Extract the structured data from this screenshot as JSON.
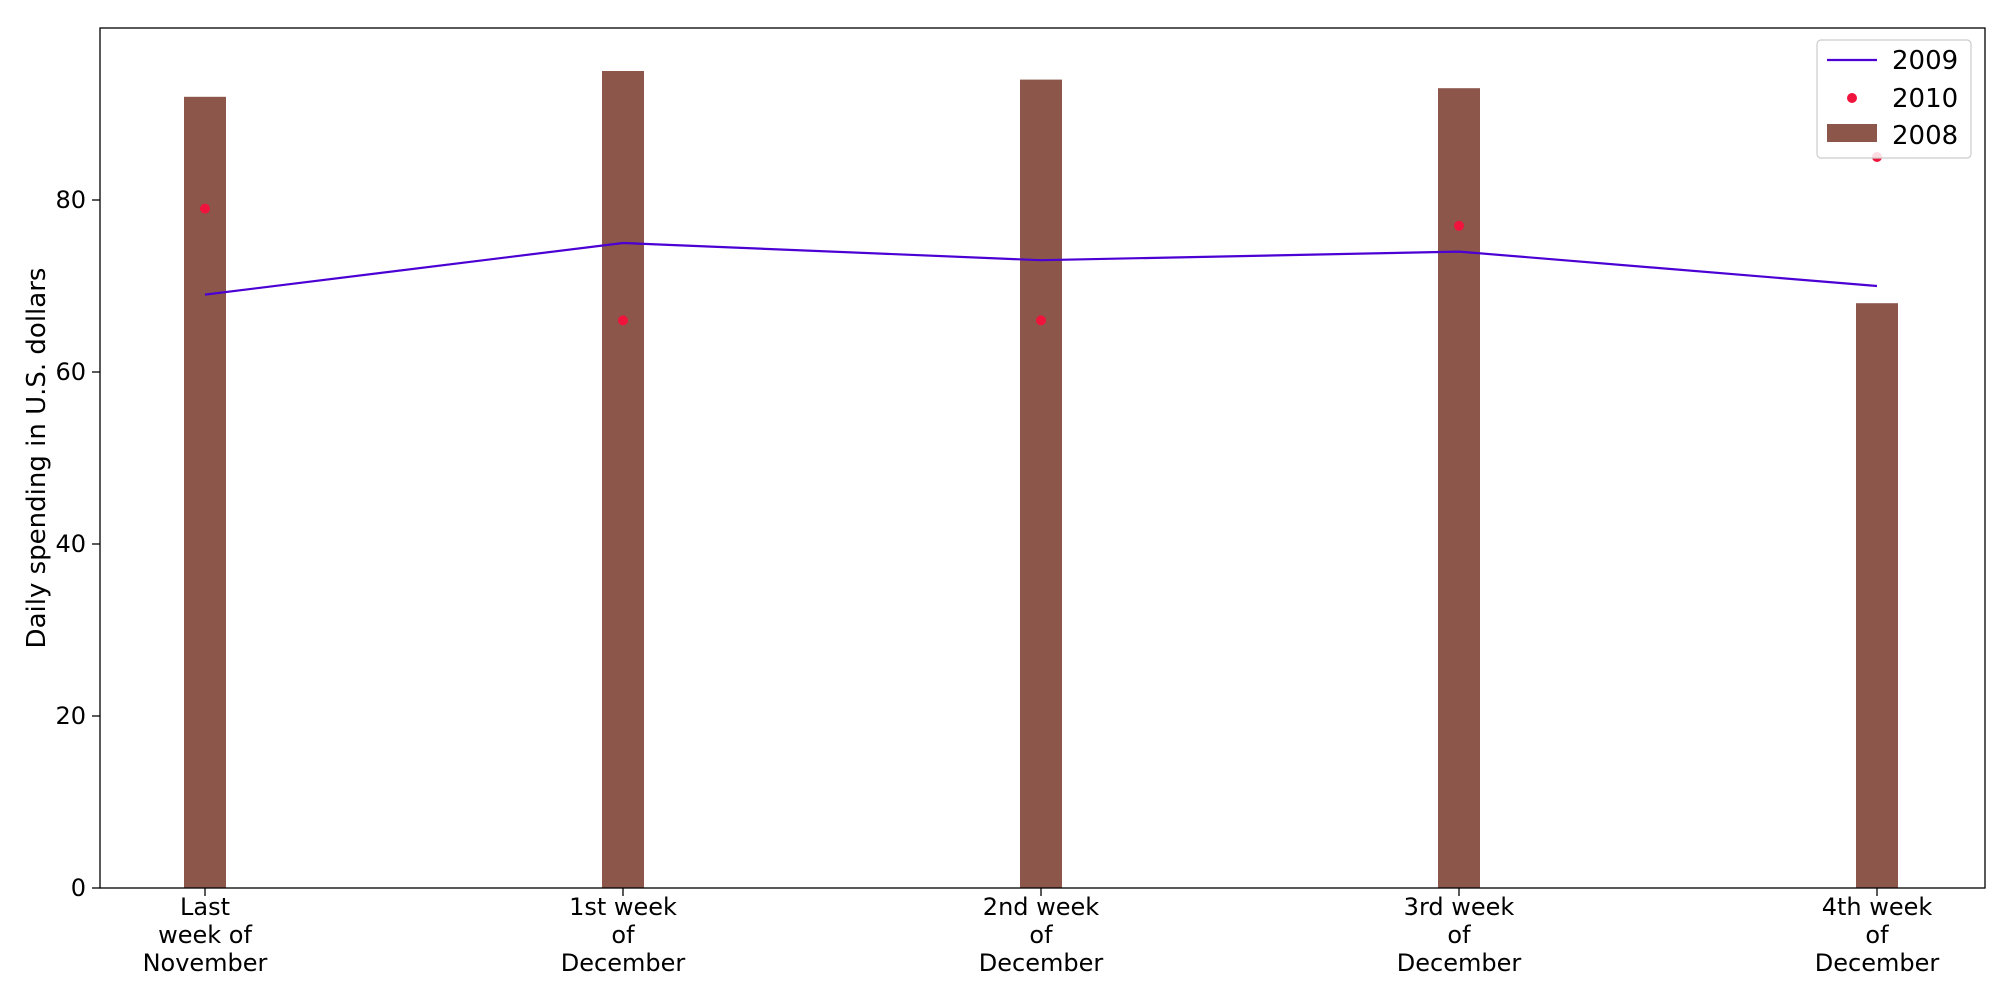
{
  "chart_data": {
    "type": "bar",
    "categories": [
      [
        "Last",
        "week of",
        "November"
      ],
      [
        "1st week",
        "of",
        "December"
      ],
      [
        "2nd week",
        "of",
        "December"
      ],
      [
        "3rd week",
        "of",
        "December"
      ],
      [
        "4th week",
        "of",
        "December"
      ]
    ],
    "series": [
      {
        "name": "2008",
        "kind": "bar",
        "color": "#8c564b",
        "values": [
          92,
          95,
          94,
          93,
          68
        ]
      },
      {
        "name": "2009",
        "kind": "line",
        "color": "#4b00d4",
        "values": [
          69,
          75,
          73,
          74,
          70
        ]
      },
      {
        "name": "2010",
        "kind": "scatter",
        "color": "#f0143c",
        "values": [
          79,
          66,
          66,
          77,
          85
        ]
      }
    ],
    "title": "",
    "xlabel": "",
    "ylabel": "Daily spending in U.S. dollars",
    "ylim": [
      0,
      100
    ],
    "yticks": [
      0,
      20,
      40,
      60,
      80
    ],
    "grid": false,
    "legend": {
      "placement": "top-right",
      "order": [
        "2009",
        "2010",
        "2008"
      ]
    }
  }
}
